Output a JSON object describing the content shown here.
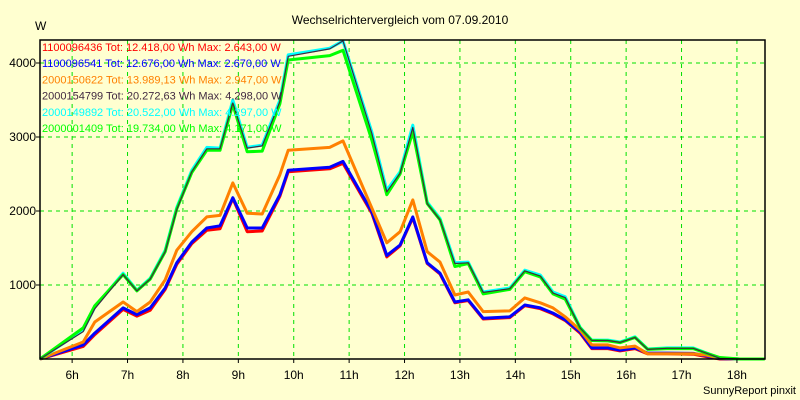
{
  "chart_data": {
    "type": "line",
    "title": "Wechselrichtervergleich vom 07.09.2010",
    "ylabel": "W",
    "xlabel": "",
    "footer": "SunnyReport pinxit",
    "xlim": [
      5.42,
      18.5
    ],
    "ylim": [
      0,
      4300
    ],
    "grid": true,
    "legend_position": "top-left",
    "x_ticks": [
      6,
      7,
      8,
      9,
      10,
      11,
      12,
      13,
      14,
      15,
      16,
      17,
      18
    ],
    "x_tick_labels": [
      "6h",
      "7h",
      "8h",
      "9h",
      "10h",
      "11h",
      "12h",
      "13h",
      "14h",
      "15h",
      "16h",
      "17h",
      "18h"
    ],
    "y_ticks": [
      1000,
      2000,
      3000,
      4000
    ],
    "y_tick_labels": [
      "1000",
      "2000",
      "3000",
      "4000"
    ],
    "x": [
      5.42,
      6.2,
      6.41,
      6.92,
      7.17,
      7.41,
      7.68,
      7.89,
      8.16,
      8.43,
      8.67,
      8.9,
      9.16,
      9.43,
      9.75,
      9.9,
      10.65,
      10.89,
      11.41,
      11.68,
      11.92,
      12.15,
      12.41,
      12.64,
      12.91,
      13.15,
      13.42,
      13.9,
      14.17,
      14.45,
      14.68,
      14.9,
      15.17,
      15.38,
      15.67,
      15.89,
      16.16,
      16.39,
      16.74,
      17.21,
      17.46,
      17.69,
      18.05,
      18.5
    ],
    "series": [
      {
        "name": "1100096436",
        "legend": "1100096436 Tot: 12.418,00 Wh Max: 2.643,00 W",
        "color": "#ff0000",
        "values": [
          0,
          170,
          330,
          670,
          580,
          660,
          940,
          1280,
          1560,
          1740,
          1760,
          2170,
          1720,
          1730,
          2200,
          2530,
          2570,
          2643,
          1970,
          1380,
          1530,
          1910,
          1290,
          1150,
          760,
          790,
          540,
          560,
          720,
          680,
          610,
          520,
          350,
          140,
          140,
          110,
          140,
          70,
          70,
          65,
          30,
          0,
          0,
          0
        ]
      },
      {
        "name": "1100096541",
        "legend": "1100096541 Tot: 12.676,00 Wh Max: 2.670,00 W",
        "color": "#0000ff",
        "values": [
          0,
          190,
          350,
          690,
          600,
          690,
          960,
          1300,
          1580,
          1770,
          1800,
          2180,
          1770,
          1770,
          2220,
          2550,
          2590,
          2670,
          1990,
          1400,
          1540,
          1920,
          1300,
          1160,
          770,
          800,
          550,
          570,
          730,
          690,
          620,
          530,
          365,
          150,
          150,
          120,
          150,
          80,
          80,
          75,
          40,
          5,
          0,
          0
        ]
      },
      {
        "name": "2000150622",
        "legend": "2000150622 Tot: 13.989,13 Wh Max: 2.947,00 W",
        "color": "#ff8000",
        "values": [
          0,
          230,
          500,
          770,
          640,
          770,
          1070,
          1470,
          1720,
          1920,
          1940,
          2380,
          1970,
          1960,
          2490,
          2820,
          2860,
          2947,
          2040,
          1570,
          1720,
          2150,
          1450,
          1310,
          865,
          905,
          640,
          650,
          825,
          760,
          690,
          570,
          390,
          190,
          190,
          150,
          175,
          70,
          70,
          70,
          50,
          10,
          0,
          0
        ]
      },
      {
        "name": "2000154799",
        "legend": "2000154799 Tot: 20.272,63 Wh Max: 4.298,00 W",
        "color": "#402840",
        "values": [
          0,
          370,
          680,
          1140,
          920,
          1080,
          1450,
          2020,
          2530,
          2840,
          2840,
          3460,
          2850,
          2880,
          3480,
          4090,
          4190,
          4298,
          3050,
          2260,
          2510,
          3130,
          2100,
          1880,
          1290,
          1300,
          900,
          950,
          1190,
          1120,
          890,
          830,
          420,
          250,
          250,
          225,
          290,
          130,
          145,
          145,
          75,
          10,
          0,
          0
        ]
      },
      {
        "name": "2000149892",
        "legend": "2000149892 Tot: 20.522,00 Wh Max: 4.297,00 W",
        "color": "#00ffff",
        "values": [
          0,
          390,
          700,
          1160,
          930,
          1090,
          1470,
          2050,
          2550,
          2860,
          2850,
          3500,
          2860,
          2890,
          3500,
          4110,
          4200,
          4297,
          3070,
          2280,
          2530,
          3160,
          2120,
          1900,
          1300,
          1310,
          905,
          960,
          1200,
          1135,
          905,
          840,
          430,
          255,
          255,
          230,
          300,
          135,
          150,
          150,
          80,
          15,
          0,
          0
        ]
      },
      {
        "name": "2000001409",
        "legend": "2000001409 Tot: 19.734,00 Wh Max: 4.171,00 W",
        "color": "#00ff00",
        "values": [
          0,
          420,
          720,
          1140,
          920,
          1080,
          1450,
          2030,
          2520,
          2820,
          2820,
          3440,
          2800,
          2810,
          3450,
          4040,
          4100,
          4171,
          2960,
          2220,
          2500,
          3070,
          2100,
          1880,
          1250,
          1290,
          880,
          940,
          1180,
          1110,
          880,
          810,
          420,
          250,
          245,
          220,
          290,
          130,
          140,
          140,
          75,
          20,
          0,
          0
        ]
      }
    ]
  }
}
